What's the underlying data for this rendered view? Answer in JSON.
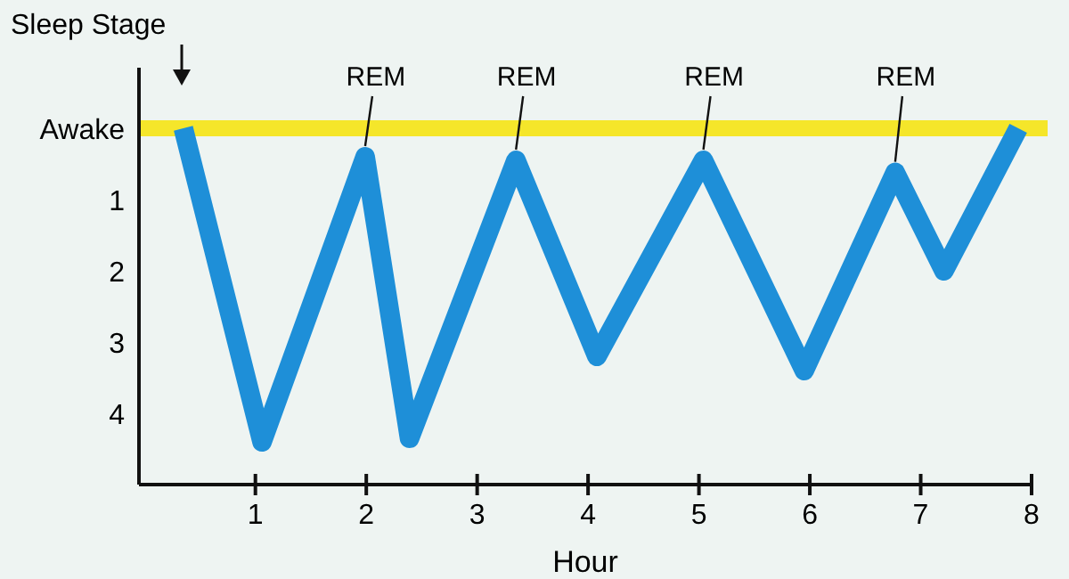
{
  "chart_data": {
    "type": "line",
    "ylabel": "Sleep Stage",
    "xlabel": "Hour",
    "x": [
      0.35,
      1.06,
      1.99,
      2.39,
      3.35,
      4.08,
      5.04,
      5.95,
      6.77,
      7.21,
      7.88
    ],
    "series": [
      {
        "color": "#1e8fd8",
        "values": [
          0,
          4.4,
          0.4,
          4.35,
          0.45,
          3.2,
          0.45,
          3.4,
          0.62,
          2.0,
          0
        ]
      }
    ],
    "xlim": [
      -0.05,
      8
    ],
    "xticks": [
      1,
      2,
      3,
      4,
      5,
      6,
      7,
      8
    ],
    "ylim": [
      5,
      -0.85
    ],
    "yticks": [
      {
        "value": 0,
        "label": "Awake"
      },
      {
        "value": 1,
        "label": "1"
      },
      {
        "value": 2,
        "label": "2"
      },
      {
        "value": 3,
        "label": "3"
      },
      {
        "value": 4,
        "label": "4"
      }
    ],
    "ref_lines": [
      {
        "axis": "y",
        "value": 0,
        "label": null,
        "color": "#f5e62a"
      }
    ],
    "annotations": [
      {
        "text": "REM",
        "x": 1.99,
        "y": 0.4
      },
      {
        "text": "REM",
        "x": 3.35,
        "y": 0.45
      },
      {
        "text": "REM",
        "x": 5.04,
        "y": 0.45
      },
      {
        "text": "REM",
        "x": 6.77,
        "y": 0.62
      }
    ],
    "marker": "none",
    "line_style": "solid",
    "grid": false
  }
}
